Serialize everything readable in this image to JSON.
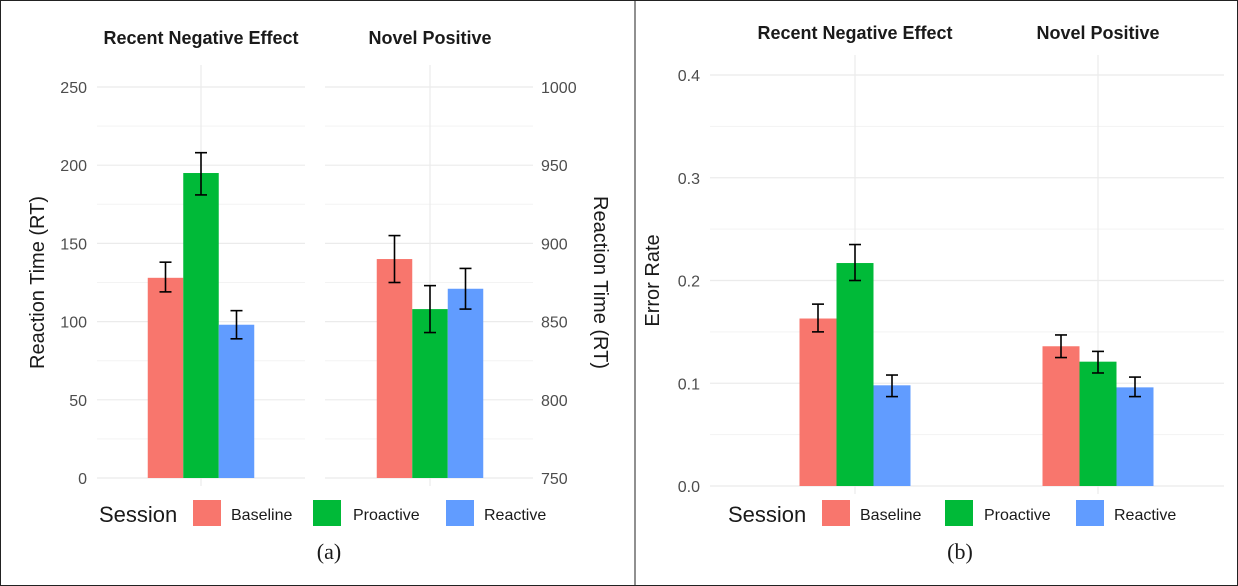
{
  "colors": {
    "Baseline": "#f8766d",
    "Proactive": "#00ba38",
    "Reactive": "#619cff",
    "grid": "#ebebeb",
    "errorbar": "#000000"
  },
  "legend": {
    "title": "Session",
    "items": [
      "Baseline",
      "Proactive",
      "Reactive"
    ]
  },
  "chart_data": [
    {
      "type": "bar",
      "caption": "(a)",
      "facets": [
        "Recent Negative Effect",
        "Novel Positive"
      ],
      "series": [
        "Baseline",
        "Proactive",
        "Reactive"
      ],
      "left_axis": {
        "title": "Reaction Time (RT)",
        "ticks": [
          0,
          50,
          100,
          150,
          200,
          250
        ],
        "ylim": [
          0,
          250
        ],
        "applies_to": "Recent Negative Effect"
      },
      "right_axis": {
        "title": "Reaction Time (RT)",
        "ticks": [
          750,
          800,
          850,
          900,
          950,
          1000
        ],
        "ylim": [
          750,
          1000
        ],
        "applies_to": "Novel Positive"
      },
      "values": {
        "Recent Negative Effect": {
          "Baseline": {
            "y": 128,
            "lo": 119,
            "hi": 138
          },
          "Proactive": {
            "y": 195,
            "lo": 181,
            "hi": 208
          },
          "Reactive": {
            "y": 98,
            "lo": 89,
            "hi": 107
          }
        },
        "Novel Positive": {
          "Baseline": {
            "y": 890,
            "lo": 875,
            "hi": 905
          },
          "Proactive": {
            "y": 858,
            "lo": 843,
            "hi": 873
          },
          "Reactive": {
            "y": 871,
            "lo": 858,
            "hi": 884
          }
        }
      }
    },
    {
      "type": "bar",
      "caption": "(b)",
      "facets": [
        "Recent Negative Effect",
        "Novel Positive"
      ],
      "series": [
        "Baseline",
        "Proactive",
        "Reactive"
      ],
      "left_axis": {
        "title": "Error Rate",
        "ticks": [
          "0.0",
          "0.1",
          "0.2",
          "0.3",
          "0.4"
        ],
        "ylim": [
          0,
          0.4
        ]
      },
      "values": {
        "Recent Negative Effect": {
          "Baseline": {
            "y": 0.163,
            "lo": 0.15,
            "hi": 0.177
          },
          "Proactive": {
            "y": 0.217,
            "lo": 0.2,
            "hi": 0.235
          },
          "Reactive": {
            "y": 0.098,
            "lo": 0.087,
            "hi": 0.108
          }
        },
        "Novel Positive": {
          "Baseline": {
            "y": 0.136,
            "lo": 0.125,
            "hi": 0.147
          },
          "Proactive": {
            "y": 0.121,
            "lo": 0.11,
            "hi": 0.131
          },
          "Reactive": {
            "y": 0.096,
            "lo": 0.087,
            "hi": 0.106
          }
        }
      }
    }
  ]
}
